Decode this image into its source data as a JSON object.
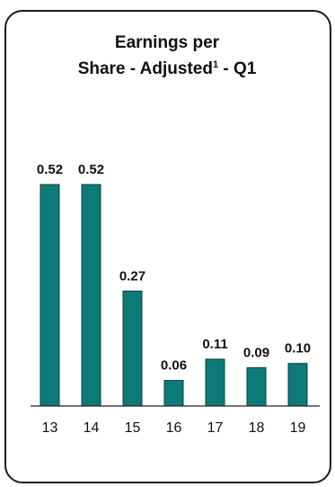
{
  "chart_data": {
    "type": "bar",
    "title": "Earnings per Share - Adjusted¹ - Q1",
    "title_line1": "Earnings per",
    "title_line2_main": "Share - Adjusted",
    "title_line2_sup": "1",
    "title_line2_end": " - Q1",
    "categories": [
      "13",
      "14",
      "15",
      "16",
      "17",
      "18",
      "19"
    ],
    "values": [
      0.52,
      0.52,
      0.27,
      0.06,
      0.11,
      0.09,
      0.1
    ],
    "value_labels": [
      "0.52",
      "0.52",
      "0.27",
      "0.06",
      "0.11",
      "0.09",
      "0.10"
    ],
    "ylim": [
      0,
      0.6
    ],
    "grid": false,
    "bar_color": "#0e7a78",
    "bar_outline_color": "#0a3f3e"
  }
}
